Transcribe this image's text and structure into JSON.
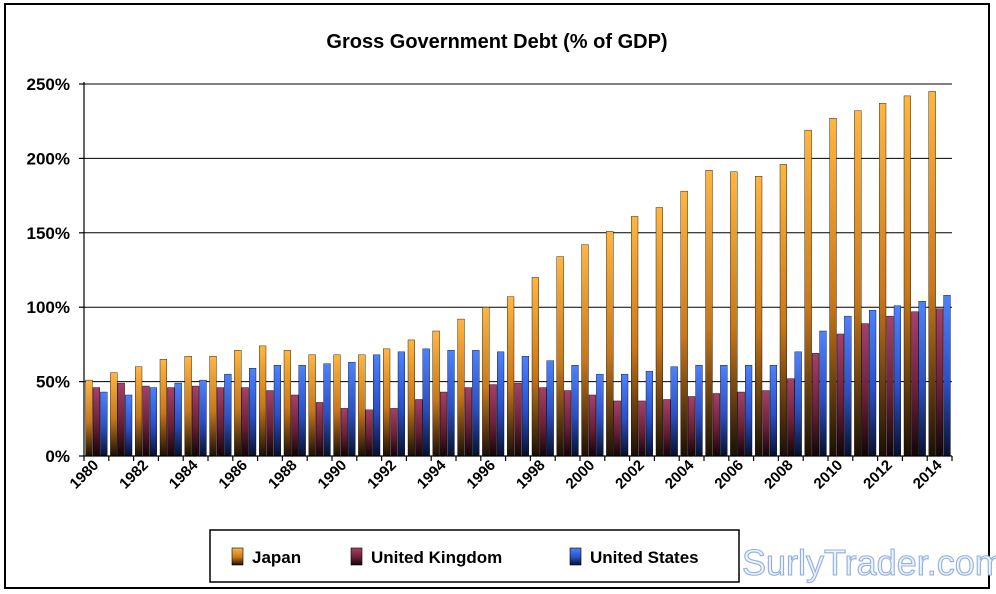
{
  "colors": {
    "japan": "#f39a1a",
    "united_kingdom": "#8e2e52",
    "united_states": "#2f66f0",
    "watermark": "#8fb0e0"
  },
  "chart_data": {
    "type": "bar",
    "title": "Gross Government Debt (% of GDP)",
    "xlabel": "",
    "ylabel": "",
    "ylim": [
      0,
      250
    ],
    "ytick_values": [
      0,
      50,
      100,
      150,
      200,
      250
    ],
    "ytick_labels": [
      "0%",
      "50%",
      "100%",
      "150%",
      "200%",
      "250%"
    ],
    "grid": true,
    "legend_position": "bottom",
    "categories": [
      1980,
      1981,
      1982,
      1983,
      1984,
      1985,
      1986,
      1987,
      1988,
      1989,
      1990,
      1991,
      1992,
      1993,
      1994,
      1995,
      1996,
      1997,
      1998,
      1999,
      2000,
      2001,
      2002,
      2003,
      2004,
      2005,
      2006,
      2007,
      2008,
      2009,
      2010,
      2011,
      2012,
      2013,
      2014
    ],
    "xtick_labels": [
      "1980",
      "1982",
      "1984",
      "1986",
      "1988",
      "1990",
      "1992",
      "1994",
      "1996",
      "1998",
      "2000",
      "2002",
      "2004",
      "2006",
      "2008",
      "2010",
      "2012",
      "2014"
    ],
    "series": [
      {
        "name": "Japan",
        "key": "japan",
        "values": [
          51,
          56,
          60,
          65,
          67,
          67,
          71,
          74,
          71,
          68,
          68,
          68,
          72,
          78,
          84,
          92,
          100,
          107,
          120,
          134,
          142,
          151,
          161,
          167,
          178,
          192,
          191,
          188,
          196,
          219,
          227,
          232,
          237,
          242,
          245
        ]
      },
      {
        "name": "United Kingdom",
        "key": "united_kingdom",
        "values": [
          46,
          49,
          47,
          46,
          47,
          46,
          46,
          44,
          41,
          36,
          32,
          31,
          32,
          38,
          43,
          46,
          48,
          49,
          46,
          44,
          41,
          37,
          37,
          38,
          40,
          42,
          43,
          44,
          52,
          69,
          82,
          89,
          94,
          97,
          99
        ]
      },
      {
        "name": "United States",
        "key": "united_states",
        "values": [
          43,
          41,
          46,
          49,
          51,
          55,
          59,
          61,
          61,
          62,
          63,
          68,
          70,
          72,
          71,
          71,
          70,
          67,
          64,
          61,
          55,
          55,
          57,
          60,
          61,
          61,
          61,
          61,
          70,
          84,
          94,
          98,
          101,
          104,
          108
        ]
      }
    ]
  },
  "watermark_text": "SurlyTrader.com"
}
